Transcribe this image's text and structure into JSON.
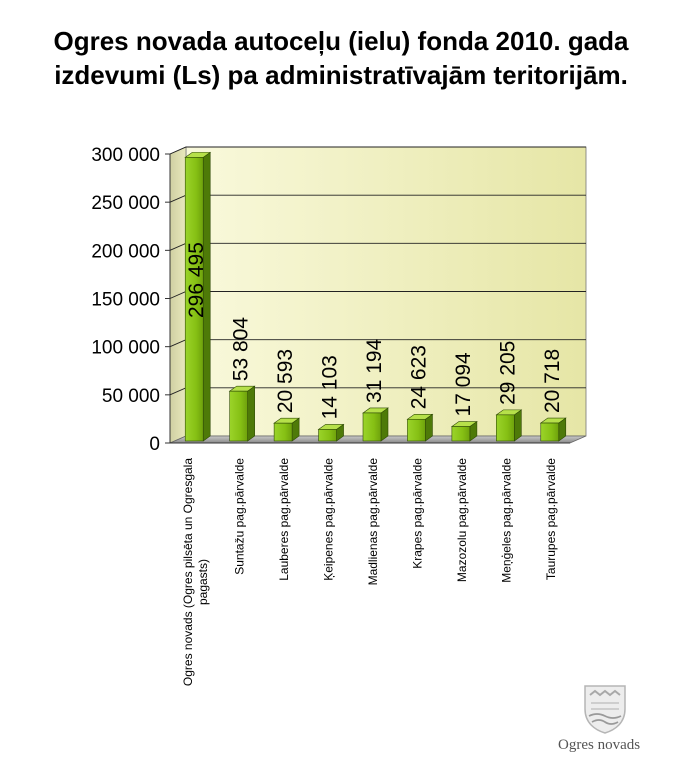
{
  "title_lines": [
    "Ogres novada autoceļu (ielu) fonda 2010. gada",
    "izdevumi (Ls) pa administratīvajām teritorijām."
  ],
  "logo_text": "Ogres novads",
  "colors": {
    "bar_front": "#8fc41c",
    "bar_side": "#4e7a08",
    "bar_top": "#b6e04a",
    "wall": "#f7f7cf",
    "floor": "#a8a8a8"
  },
  "chart_data": {
    "type": "bar",
    "categories": [
      "Ogres novads (Ogres pilsēta un Ogresgala pagasts)",
      "Suntažu pag.pārvalde",
      "Lauberes pag.pārvalde",
      "Ķeipenes pag.pārvalde",
      "Madlienas pag.pārvalde",
      "Krapes pag.pārvalde",
      "Mazozolu pag.pārvalde",
      "Meņģeles pag.pārvalde",
      "Taurupes pag.pārvalde"
    ],
    "category_label_lines": [
      [
        "Ogres novads (Ogres pilsēta un Ogresgala",
        "pagasts)"
      ],
      [
        "Suntažu pag.pārvalde"
      ],
      [
        "Lauberes pag.pārvalde"
      ],
      [
        "Ķeipenes pag.pārvalde"
      ],
      [
        "Madlienas pag.pārvalde"
      ],
      [
        "Krapes pag.pārvalde"
      ],
      [
        "Mazozolu pag.pārvalde"
      ],
      [
        "Meņģeles pag.pārvalde"
      ],
      [
        "Taurupes pag.pārvalde"
      ]
    ],
    "values": [
      296495,
      53804,
      20593,
      14103,
      31194,
      24623,
      17094,
      29205,
      20718
    ],
    "data_labels": [
      "296 495",
      "53 804",
      "20 593",
      "14 103",
      "31 194",
      "24 623",
      "17 094",
      "29 205",
      "20 718"
    ],
    "ylim": [
      0,
      300000
    ],
    "yticks": [
      0,
      50000,
      100000,
      150000,
      200000,
      250000,
      300000
    ],
    "ytick_labels": [
      "0",
      "50 000",
      "100 000",
      "150 000",
      "200 000",
      "250 000",
      "300 000"
    ],
    "grid": true,
    "legend": false
  }
}
